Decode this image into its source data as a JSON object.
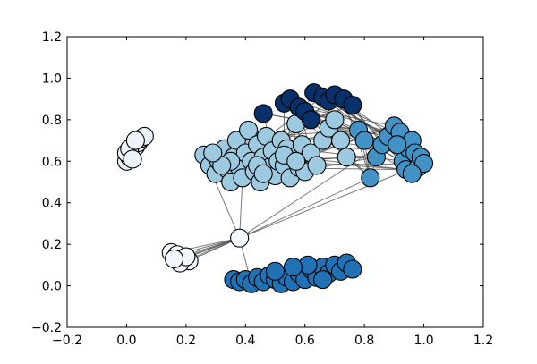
{
  "chart_data": {
    "type": "scatter",
    "title": "",
    "xlabel": "",
    "ylabel": "",
    "xlim": [
      -0.2,
      1.2
    ],
    "ylim": [
      -0.2,
      1.2
    ],
    "x_ticks": [
      "−0.2",
      "0.0",
      "0.2",
      "0.4",
      "0.6",
      "0.8",
      "1.0",
      "1.2"
    ],
    "y_ticks": [
      "−0.2",
      "0.0",
      "0.2",
      "0.4",
      "0.6",
      "0.8",
      "1.0",
      "1.2"
    ],
    "grid": false,
    "legend": "none",
    "groups": [
      {
        "color": "#EEF4FC",
        "points": [
          [
            0.0,
            0.6
          ],
          [
            0.01,
            0.62
          ],
          [
            0.02,
            0.65
          ],
          [
            0.03,
            0.67
          ],
          [
            0.04,
            0.69
          ],
          [
            0.05,
            0.71
          ],
          [
            0.06,
            0.72
          ],
          [
            0.0,
            0.64
          ],
          [
            0.01,
            0.66
          ],
          [
            0.03,
            0.7
          ],
          [
            0.02,
            0.61
          ]
        ]
      },
      {
        "color": "#F4F8FD",
        "points": [
          [
            0.15,
            0.16
          ],
          [
            0.17,
            0.15
          ],
          [
            0.19,
            0.13
          ],
          [
            0.21,
            0.12
          ],
          [
            0.18,
            0.11
          ],
          [
            0.2,
            0.14
          ],
          [
            0.16,
            0.13
          ],
          [
            0.38,
            0.23
          ]
        ]
      },
      {
        "color": "#9ECAE1",
        "points": [
          [
            0.26,
            0.63
          ],
          [
            0.28,
            0.58
          ],
          [
            0.3,
            0.54
          ],
          [
            0.31,
            0.6
          ],
          [
            0.33,
            0.66
          ],
          [
            0.34,
            0.56
          ],
          [
            0.35,
            0.5
          ],
          [
            0.36,
            0.62
          ],
          [
            0.37,
            0.7
          ],
          [
            0.38,
            0.57
          ],
          [
            0.39,
            0.52
          ],
          [
            0.4,
            0.64
          ],
          [
            0.41,
            0.75
          ],
          [
            0.42,
            0.6
          ],
          [
            0.43,
            0.55
          ],
          [
            0.44,
            0.68
          ],
          [
            0.45,
            0.5
          ],
          [
            0.46,
            0.62
          ],
          [
            0.47,
            0.72
          ],
          [
            0.48,
            0.57
          ],
          [
            0.49,
            0.65
          ],
          [
            0.5,
            0.53
          ],
          [
            0.51,
            0.6
          ],
          [
            0.52,
            0.7
          ],
          [
            0.53,
            0.58
          ],
          [
            0.54,
            0.66
          ],
          [
            0.55,
            0.52
          ],
          [
            0.56,
            0.62
          ],
          [
            0.57,
            0.78
          ],
          [
            0.58,
            0.57
          ],
          [
            0.59,
            0.68
          ],
          [
            0.6,
            0.55
          ],
          [
            0.62,
            0.64
          ],
          [
            0.64,
            0.58
          ],
          [
            0.66,
            0.7
          ],
          [
            0.68,
            0.76
          ],
          [
            0.7,
            0.8
          ],
          [
            0.72,
            0.7
          ],
          [
            0.74,
            0.62
          ],
          [
            0.35,
            0.6
          ],
          [
            0.44,
            0.58
          ],
          [
            0.53,
            0.63
          ],
          [
            0.32,
            0.58
          ],
          [
            0.29,
            0.64
          ],
          [
            0.46,
            0.54
          ],
          [
            0.57,
            0.6
          ]
        ]
      },
      {
        "color": "#4292C6",
        "points": [
          [
            0.78,
            0.75
          ],
          [
            0.8,
            0.7
          ],
          [
            0.82,
            0.52
          ],
          [
            0.84,
            0.62
          ],
          [
            0.86,
            0.68
          ],
          [
            0.88,
            0.72
          ],
          [
            0.9,
            0.77
          ],
          [
            0.92,
            0.74
          ],
          [
            0.93,
            0.6
          ],
          [
            0.94,
            0.56
          ],
          [
            0.95,
            0.66
          ],
          [
            0.96,
            0.7
          ],
          [
            0.97,
            0.64
          ],
          [
            0.98,
            0.57
          ],
          [
            0.99,
            0.62
          ],
          [
            1.0,
            0.59
          ],
          [
            0.91,
            0.68
          ],
          [
            0.96,
            0.54
          ]
        ]
      },
      {
        "color": "#2171B5",
        "points": [
          [
            0.36,
            0.03
          ],
          [
            0.38,
            0.02
          ],
          [
            0.4,
            0.03
          ],
          [
            0.42,
            0.01
          ],
          [
            0.44,
            0.04
          ],
          [
            0.46,
            0.02
          ],
          [
            0.48,
            0.05
          ],
          [
            0.5,
            0.03
          ],
          [
            0.52,
            0.01
          ],
          [
            0.54,
            0.04
          ],
          [
            0.56,
            0.02
          ],
          [
            0.58,
            0.06
          ],
          [
            0.6,
            0.03
          ],
          [
            0.62,
            0.08
          ],
          [
            0.64,
            0.04
          ],
          [
            0.66,
            0.09
          ],
          [
            0.68,
            0.06
          ],
          [
            0.7,
            0.1
          ],
          [
            0.72,
            0.07
          ],
          [
            0.74,
            0.11
          ],
          [
            0.76,
            0.08
          ],
          [
            0.61,
            0.1
          ],
          [
            0.56,
            0.09
          ],
          [
            0.66,
            0.03
          ],
          [
            0.5,
            0.07
          ]
        ]
      },
      {
        "color": "#08306B",
        "points": [
          [
            0.46,
            0.83
          ],
          [
            0.53,
            0.88
          ],
          [
            0.55,
            0.9
          ],
          [
            0.58,
            0.86
          ],
          [
            0.6,
            0.84
          ],
          [
            0.62,
            0.8
          ],
          [
            0.63,
            0.93
          ],
          [
            0.66,
            0.91
          ],
          [
            0.68,
            0.89
          ],
          [
            0.7,
            0.92
          ],
          [
            0.73,
            0.9
          ],
          [
            0.76,
            0.87
          ]
        ]
      }
    ]
  }
}
